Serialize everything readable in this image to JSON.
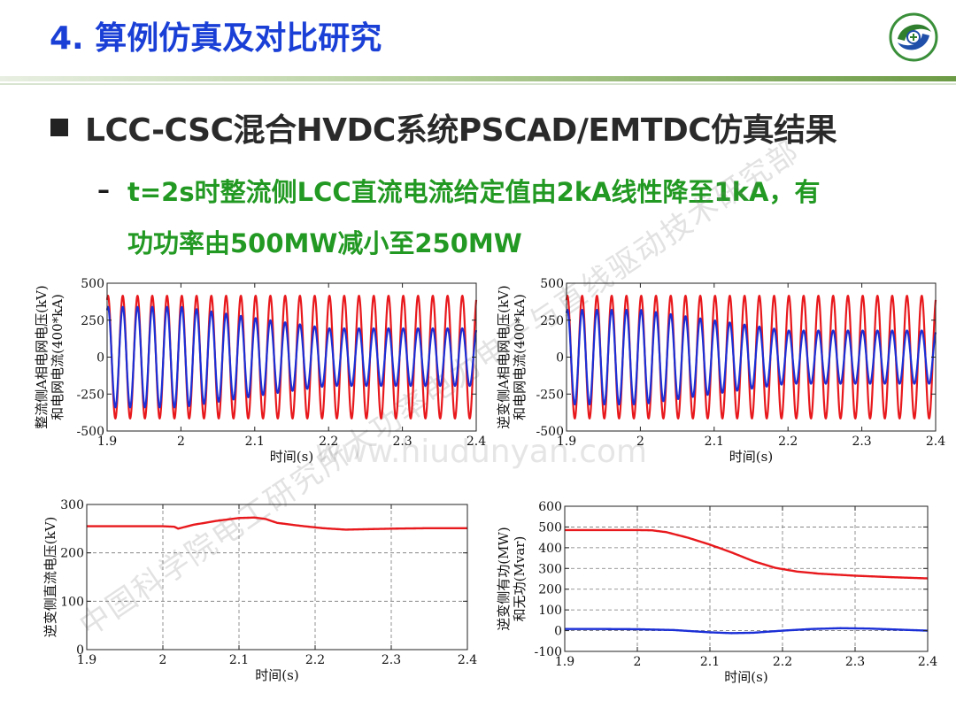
{
  "header": {
    "title": "4. 算例仿真及对比研究"
  },
  "content": {
    "heading": "LCC-CSC混合HVDC系统PSCAD/EMTDC仿真结果",
    "dash": "–",
    "sub_line1": "t=2s时整流侧LCC直流电流给定值由2kA线性降至1kA，有",
    "sub_line2": "功功率由500MW减小至250MW"
  },
  "watermark": {
    "text": "中国科学院电工研究所大功率电力电子与直线驱动技术研究部",
    "url": "www.hiudunyan.com"
  },
  "colors": {
    "title": "#1a3fd6",
    "subtitle": "#229922",
    "series_red": "#e8191d",
    "series_blue": "#1b2fd6"
  },
  "chart_data": [
    {
      "id": "chart1",
      "type": "line",
      "xlabel": "时间(s)",
      "ylabel_lines": [
        "整流侧A相电网电压(kV)",
        "和电网电流(400*kA)"
      ],
      "xlim": [
        1.9,
        2.4
      ],
      "ylim": [
        -500,
        500
      ],
      "xticks": [
        1.9,
        2,
        2.1,
        2.2,
        2.3,
        2.4
      ],
      "xtick_labels": [
        "1.9",
        "2",
        "2.1",
        "2.2",
        "2.3",
        "2.4"
      ],
      "yticks": [
        -500,
        -250,
        0,
        250,
        500
      ],
      "ytick_labels": [
        "-500",
        "-250",
        "0",
        "250",
        "500"
      ],
      "grid": false,
      "frequency_hz": 50,
      "series": [
        {
          "color": "#e8191d",
          "kind": "sine",
          "amplitude": {
            "x": [
              1.9,
              2.4
            ],
            "y": [
              415,
              415
            ]
          }
        },
        {
          "color": "#1b2fd6",
          "kind": "sine",
          "amplitude": {
            "x": [
              1.9,
              2.0,
              2.12,
              2.2,
              2.4
            ],
            "y": [
              340,
              340,
              250,
              195,
              195
            ]
          }
        }
      ]
    },
    {
      "id": "chart2",
      "type": "line",
      "xlabel": "时间(s)",
      "ylabel_lines": [
        "逆变侧A相电网电压(kV)",
        "和电网电流(400*kA)"
      ],
      "xlim": [
        1.9,
        2.4
      ],
      "ylim": [
        -500,
        500
      ],
      "xticks": [
        1.9,
        2,
        2.1,
        2.2,
        2.3,
        2.4
      ],
      "xtick_labels": [
        "1.9",
        "2",
        "2.1",
        "2.2",
        "2.3",
        "2.4"
      ],
      "yticks": [
        -500,
        -250,
        0,
        250,
        500
      ],
      "ytick_labels": [
        "-500",
        "-250",
        "0",
        "250",
        "500"
      ],
      "grid": false,
      "frequency_hz": 50,
      "series": [
        {
          "color": "#e8191d",
          "kind": "sine",
          "amplitude": {
            "x": [
              1.9,
              2.4
            ],
            "y": [
              415,
              415
            ]
          }
        },
        {
          "color": "#1b2fd6",
          "kind": "sine",
          "amplitude": {
            "x": [
              1.9,
              2.0,
              2.12,
              2.2,
              2.4
            ],
            "y": [
              320,
              320,
              235,
              180,
              180
            ]
          }
        }
      ]
    },
    {
      "id": "chart3",
      "type": "line",
      "xlabel": "时间(s)",
      "ylabel_lines": [
        "逆变侧直流电压(kV)"
      ],
      "xlim": [
        1.9,
        2.4
      ],
      "ylim": [
        0,
        300
      ],
      "xticks": [
        1.9,
        2,
        2.1,
        2.2,
        2.3,
        2.4
      ],
      "xtick_labels": [
        "1.9",
        "2",
        "2.1",
        "2.2",
        "2.3",
        "2.4"
      ],
      "yticks": [
        0,
        100,
        200,
        300
      ],
      "ytick_labels": [
        "0",
        "100",
        "200",
        "300"
      ],
      "grid": true,
      "series": [
        {
          "color": "#e8191d",
          "kind": "line",
          "x": [
            1.9,
            1.95,
            2.0,
            2.015,
            2.02,
            2.04,
            2.07,
            2.1,
            2.12,
            2.135,
            2.15,
            2.18,
            2.21,
            2.24,
            2.27,
            2.3,
            2.35,
            2.4
          ],
          "y": [
            255,
            255,
            255,
            254,
            250,
            258,
            266,
            272,
            273,
            270,
            262,
            256,
            251,
            248,
            249,
            250,
            251,
            251
          ]
        }
      ]
    },
    {
      "id": "chart4",
      "type": "line",
      "xlabel": "时间(s)",
      "ylabel_lines": [
        "逆变侧有功(MW)",
        "和无功(Mvar)"
      ],
      "xlim": [
        1.9,
        2.4
      ],
      "ylim": [
        -100,
        600
      ],
      "xticks": [
        1.9,
        2,
        2.1,
        2.2,
        2.3,
        2.4
      ],
      "xtick_labels": [
        "1.9",
        "2",
        "2.1",
        "2.2",
        "2.3",
        "2.4"
      ],
      "yticks": [
        -100,
        0,
        100,
        200,
        300,
        400,
        500,
        600
      ],
      "ytick_labels": [
        "-100",
        "0",
        "100",
        "200",
        "300",
        "400",
        "500",
        "600"
      ],
      "grid": true,
      "series": [
        {
          "color": "#e8191d",
          "kind": "line",
          "x": [
            1.9,
            1.95,
            2.0,
            2.02,
            2.04,
            2.07,
            2.1,
            2.13,
            2.16,
            2.19,
            2.22,
            2.25,
            2.3,
            2.35,
            2.4
          ],
          "y": [
            485,
            485,
            485,
            484,
            475,
            448,
            415,
            377,
            335,
            303,
            285,
            275,
            265,
            258,
            252
          ]
        },
        {
          "color": "#1b2fd6",
          "kind": "line",
          "x": [
            1.9,
            1.95,
            2.0,
            2.05,
            2.1,
            2.13,
            2.16,
            2.2,
            2.24,
            2.28,
            2.32,
            2.36,
            2.4
          ],
          "y": [
            8,
            8,
            7,
            3,
            -8,
            -12,
            -10,
            0,
            8,
            12,
            10,
            5,
            0
          ]
        }
      ]
    }
  ]
}
